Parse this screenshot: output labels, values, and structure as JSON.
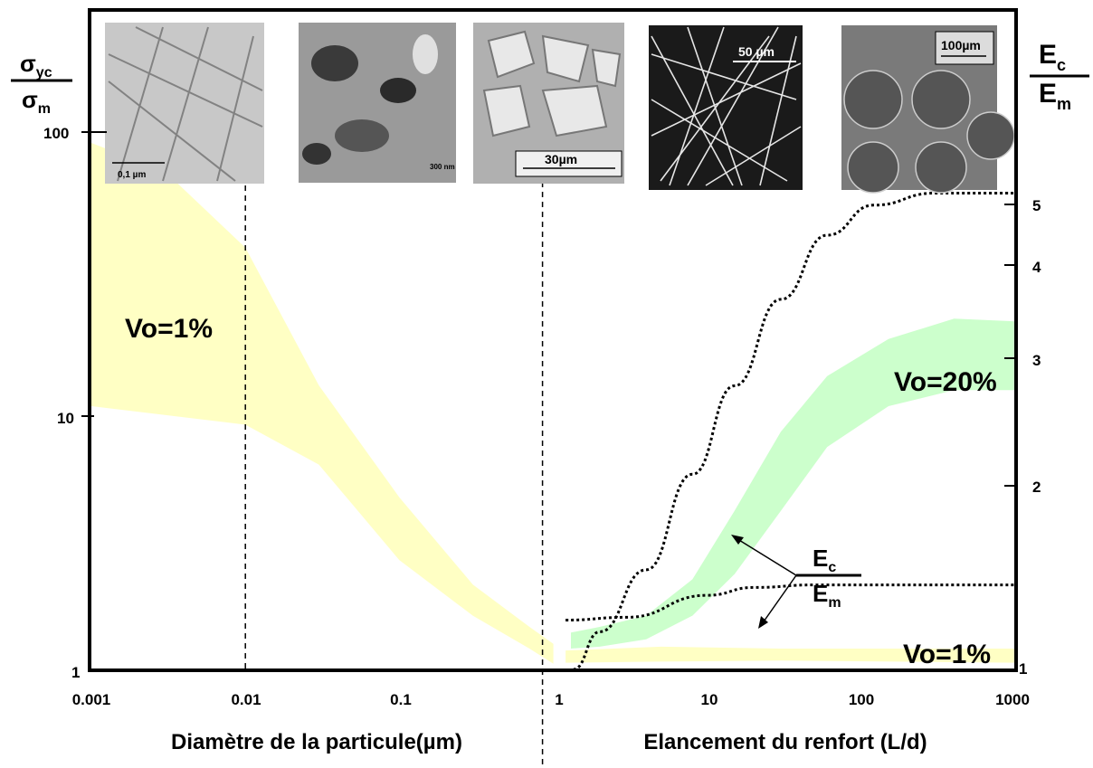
{
  "chart_data": {
    "type": "area",
    "x_axis": {
      "scale": "log",
      "range": [
        0.001,
        1000
      ],
      "tick_labels": [
        "0.001",
        "0.01",
        "0.1",
        "1",
        "10",
        "100",
        "1000"
      ],
      "label_left": "Diamètre de la particule(µm)",
      "label_right": "Elancement du renfort (L/d)"
    },
    "y_axis_left": {
      "scale": "log",
      "range": [
        1,
        300
      ],
      "tick_labels": [
        "1",
        "10",
        "100"
      ],
      "label_num": "σ",
      "label_num_sub": "yc",
      "label_den": "σ",
      "label_den_sub": "m"
    },
    "y_axis_right": {
      "range": [
        1,
        5
      ],
      "tick_labels": [
        "1",
        "2",
        "3",
        "4",
        "5"
      ],
      "label_num": "E",
      "label_num_sub": "c",
      "label_den": "E",
      "label_den_sub": "m"
    },
    "dividers_x": [
      0.01,
      0.85
    ],
    "bands": [
      {
        "name": "Vo=1%",
        "color": "#ffffc4",
        "upper": [
          [
            0.001,
            100
          ],
          [
            0.003,
            78
          ],
          [
            0.01,
            40
          ],
          [
            0.03,
            12
          ],
          [
            0.1,
            4.5
          ],
          [
            0.3,
            2.1
          ],
          [
            0.7,
            1.45
          ],
          [
            1,
            1.25
          ]
        ],
        "lower": [
          [
            0.001,
            10
          ],
          [
            0.01,
            8.5
          ],
          [
            0.03,
            6
          ],
          [
            0.1,
            2.6
          ],
          [
            0.3,
            1.6
          ],
          [
            0.7,
            1.2
          ],
          [
            1,
            1.05
          ]
        ]
      },
      {
        "name": "Vo=1%",
        "color": "#ffffc4",
        "upper": [
          [
            1.2,
            1.18
          ],
          [
            5,
            1.22
          ],
          [
            30,
            1.2
          ],
          [
            1000,
            1.2
          ]
        ],
        "lower": [
          [
            1.2,
            1.06
          ],
          [
            5,
            1.07
          ],
          [
            30,
            1.08
          ],
          [
            1000,
            1.06
          ]
        ]
      },
      {
        "name": "Vo=20%",
        "color": "#ccffcc",
        "upper": [
          [
            1.3,
            1.38
          ],
          [
            2,
            1.45
          ],
          [
            4,
            1.6
          ],
          [
            8,
            2.2
          ],
          [
            15,
            4
          ],
          [
            30,
            8
          ],
          [
            60,
            13
          ],
          [
            150,
            18
          ],
          [
            400,
            21.5
          ],
          [
            1000,
            21
          ]
        ],
        "lower": [
          [
            1.3,
            1.2
          ],
          [
            2,
            1.22
          ],
          [
            4,
            1.3
          ],
          [
            8,
            1.6
          ],
          [
            15,
            2.3
          ],
          [
            30,
            4
          ],
          [
            60,
            7
          ],
          [
            150,
            10
          ],
          [
            400,
            11.5
          ],
          [
            1000,
            11.5
          ]
        ]
      }
    ],
    "lines": [
      {
        "name": "Ec/Em",
        "axis": "right",
        "style": "dotted",
        "points": [
          [
            1.35,
            1.0
          ],
          [
            2,
            1.12
          ],
          [
            4,
            1.35
          ],
          [
            8,
            1.8
          ],
          [
            15,
            2.35
          ],
          [
            30,
            3.05
          ],
          [
            60,
            3.7
          ],
          [
            120,
            4.05
          ],
          [
            300,
            4.2
          ],
          [
            1000,
            4.2
          ]
        ]
      },
      {
        "name": "Ec/Em",
        "axis": "right",
        "style": "dotted",
        "points": [
          [
            1.2,
            1.16
          ],
          [
            3,
            1.17
          ],
          [
            10,
            1.25
          ],
          [
            20,
            1.28
          ],
          [
            50,
            1.29
          ],
          [
            1000,
            1.29
          ]
        ]
      }
    ],
    "annotations": [
      {
        "text": "Vo=1%",
        "x": 0.003,
        "y": 20
      },
      {
        "text": "Vo=20%",
        "x": 250,
        "y": 14
      },
      {
        "text": "Vo=1%",
        "x": 250,
        "y": 1.1
      }
    ],
    "micrographs": [
      {
        "scale_label": "0,1 µm"
      },
      {
        "scale_label": "300 nm"
      },
      {
        "scale_label": "30µm"
      },
      {
        "scale_label": "50 µm"
      },
      {
        "scale_label": "100µm"
      }
    ],
    "arrow_label": {
      "num": "E",
      "num_sub": "c",
      "den": "E",
      "den_sub": "m"
    }
  },
  "colors": {
    "band_yellow": "#ffffc4",
    "band_green": "#ccffcc",
    "axis": "#000000"
  }
}
